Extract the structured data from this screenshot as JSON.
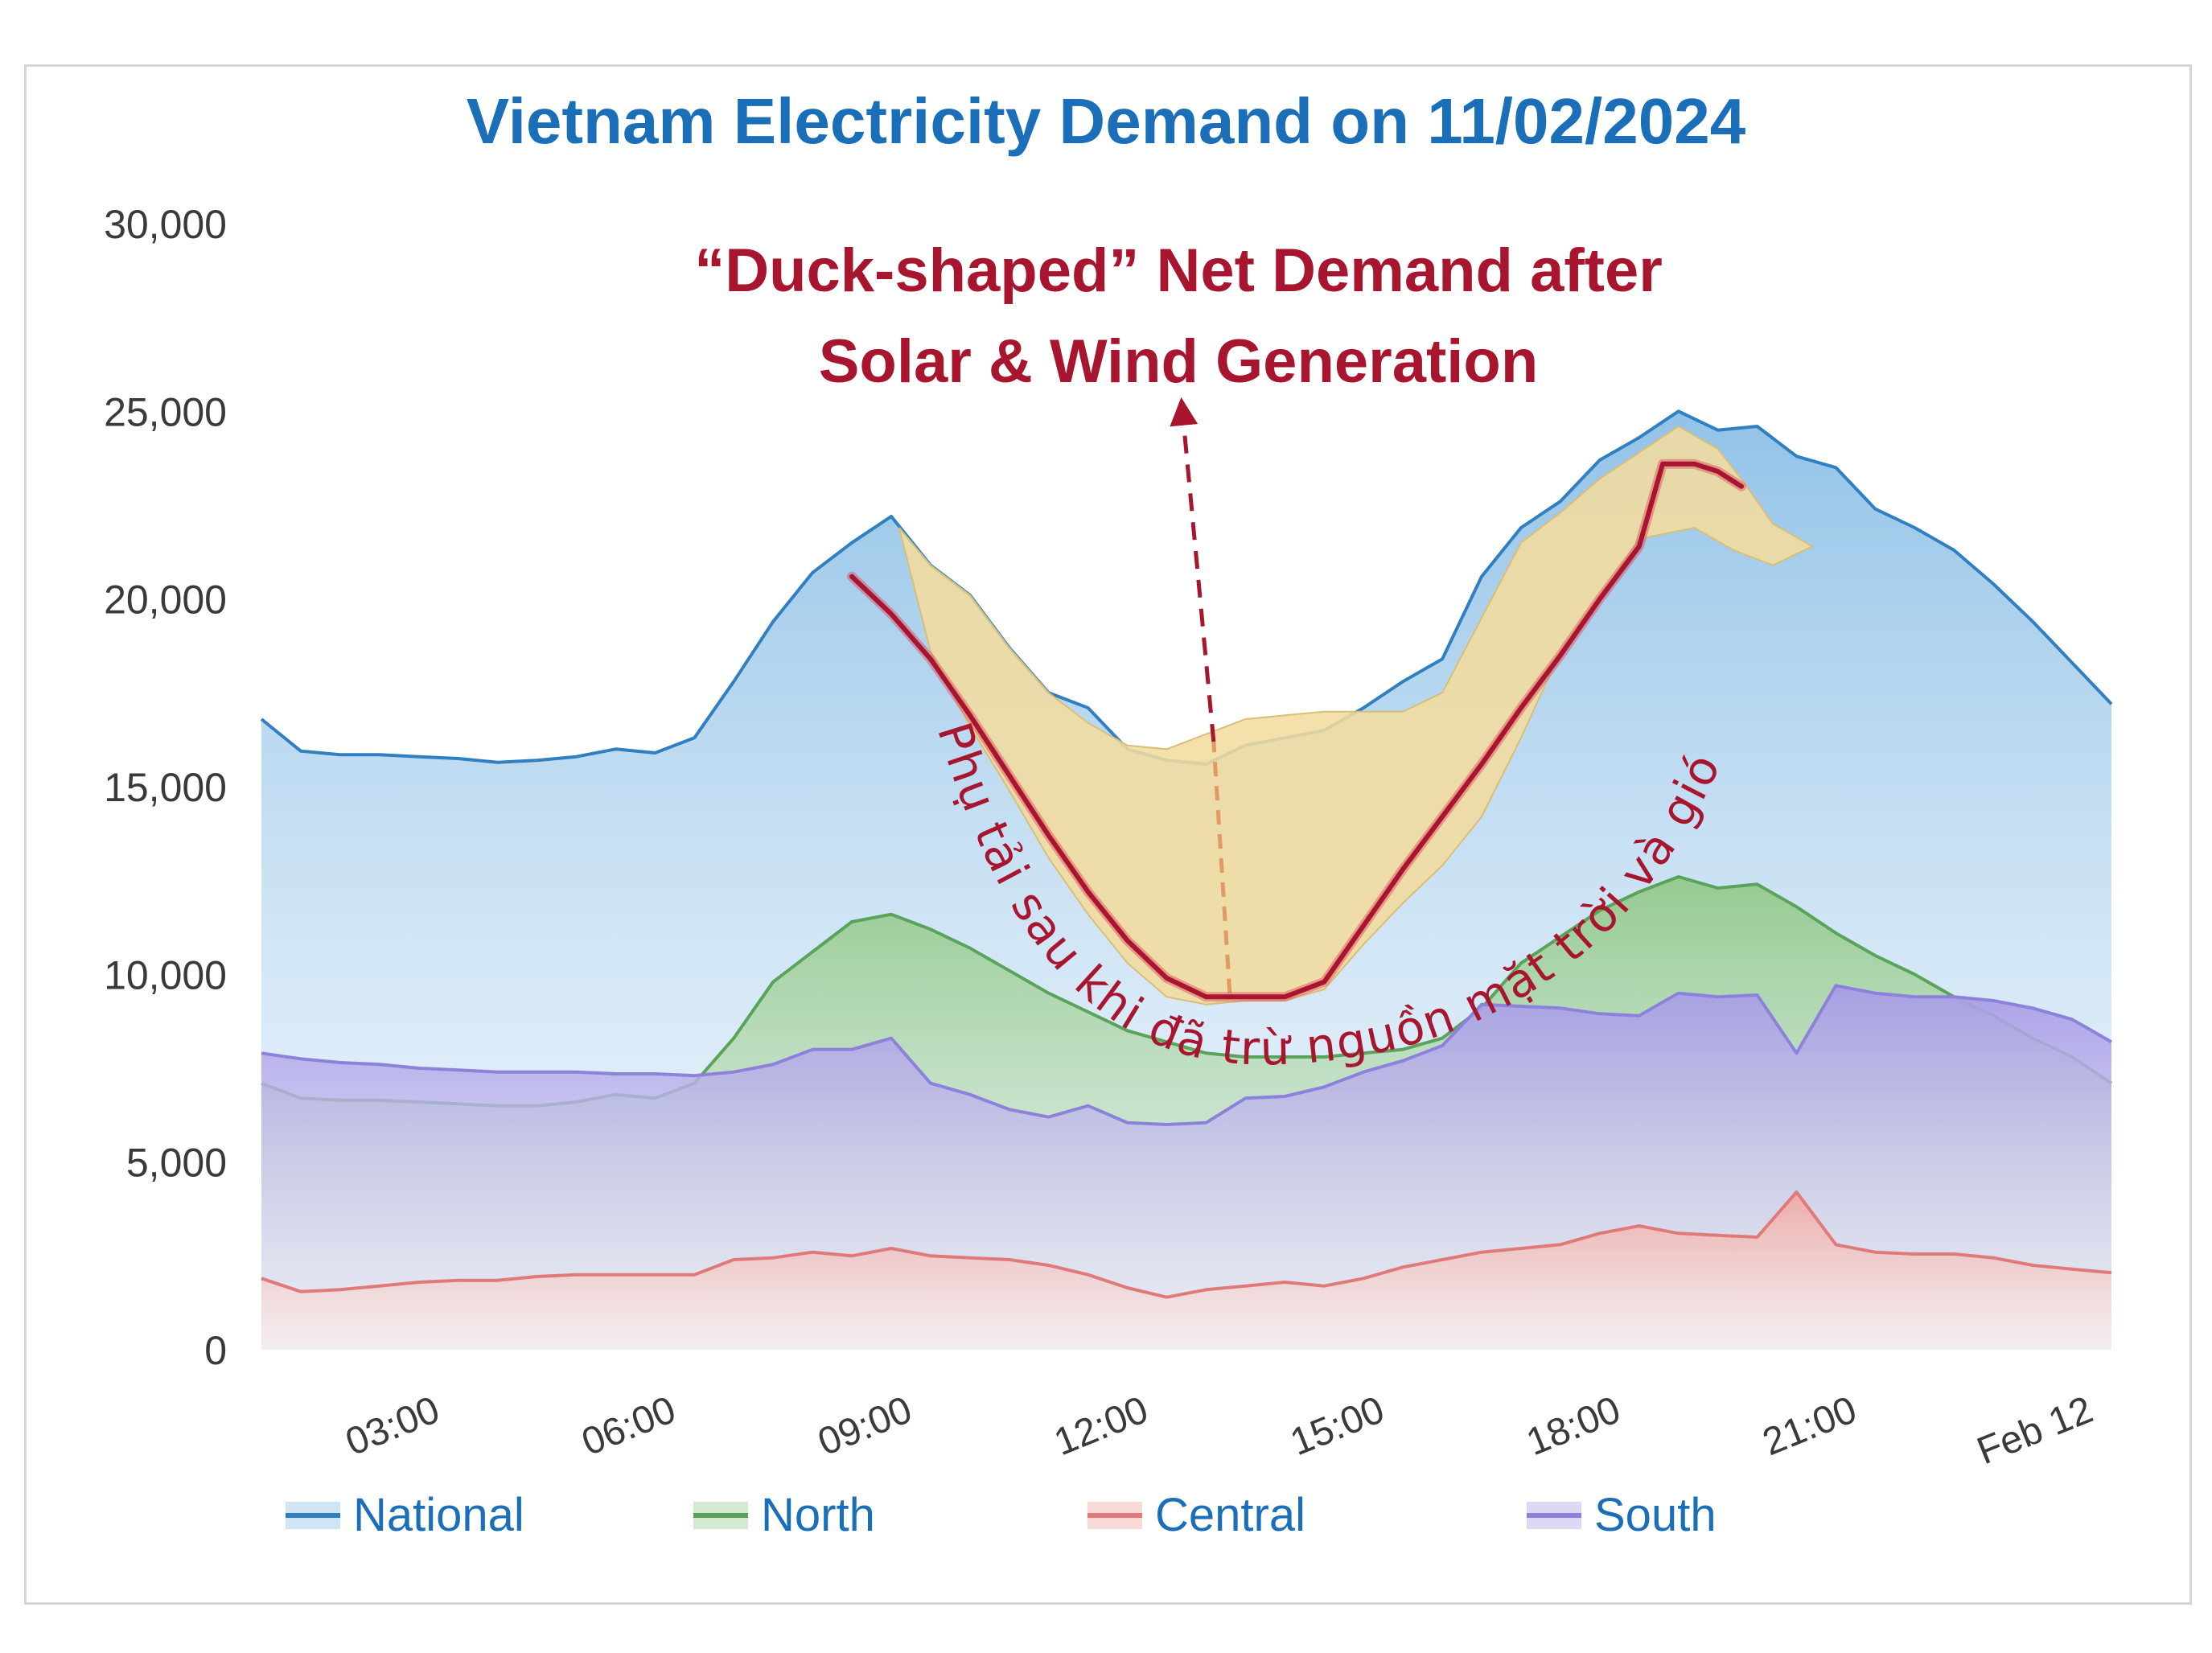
{
  "title": "Vietnam Electricity Demand on 11/02/2024",
  "annotation": {
    "heading_line1": "“Duck-shaped” Net Demand after",
    "heading_line2": "Solar & Wind Generation",
    "curve_text": "Phụ tải sau khi đã trừ nguồn mặt trời và gió",
    "color": "#a8152e",
    "belly_color": "#f2dc9e"
  },
  "chart_data": {
    "type": "area",
    "title": "Vietnam Electricity Demand on 11/02/2024",
    "xlabel": "",
    "ylabel": "",
    "x_unit": "hours since 00:00 on 11/02/2024",
    "x_ticks": [
      {
        "x": 3,
        "label": "03:00"
      },
      {
        "x": 6,
        "label": "06:00"
      },
      {
        "x": 9,
        "label": "09:00"
      },
      {
        "x": 12,
        "label": "12:00"
      },
      {
        "x": 15,
        "label": "15:00"
      },
      {
        "x": 18,
        "label": "18:00"
      },
      {
        "x": 21,
        "label": "21:00"
      },
      {
        "x": 24,
        "label": "Feb 12"
      }
    ],
    "y_ticks": [
      0,
      5000,
      10000,
      15000,
      20000,
      25000,
      30000
    ],
    "y_tick_labels": [
      "0",
      "5,000",
      "10,000",
      "15,000",
      "20,000",
      "25,000",
      "30,000"
    ],
    "xlim": [
      0.5,
      24
    ],
    "ylim": [
      0,
      30000
    ],
    "grid": false,
    "legend_position": "bottom",
    "series": [
      {
        "name": "National",
        "color": "#2f7fc1",
        "fill": "#9fc9ea",
        "points": [
          [
            0.5,
            16800
          ],
          [
            1.0,
            15950
          ],
          [
            1.5,
            15850
          ],
          [
            2.0,
            15850
          ],
          [
            2.5,
            15800
          ],
          [
            3.0,
            15750
          ],
          [
            3.5,
            15650
          ],
          [
            4.0,
            15700
          ],
          [
            4.5,
            15800
          ],
          [
            5.0,
            16000
          ],
          [
            5.5,
            15900
          ],
          [
            6.0,
            16300
          ],
          [
            6.5,
            17800
          ],
          [
            7.0,
            19400
          ],
          [
            7.5,
            20700
          ],
          [
            8.0,
            21500
          ],
          [
            8.5,
            22200
          ],
          [
            9.0,
            20900
          ],
          [
            9.5,
            20100
          ],
          [
            10.0,
            18700
          ],
          [
            10.5,
            17500
          ],
          [
            11.0,
            17100
          ],
          [
            11.5,
            16000
          ],
          [
            12.0,
            15700
          ],
          [
            12.5,
            15600
          ],
          [
            13.0,
            16100
          ],
          [
            13.5,
            16300
          ],
          [
            14.0,
            16500
          ],
          [
            14.5,
            17100
          ],
          [
            15.0,
            17800
          ],
          [
            15.5,
            18400
          ],
          [
            16.0,
            20600
          ],
          [
            16.5,
            21900
          ],
          [
            17.0,
            22600
          ],
          [
            17.5,
            23700
          ],
          [
            18.0,
            24300
          ],
          [
            18.5,
            25000
          ],
          [
            19.0,
            24500
          ],
          [
            19.5,
            24600
          ],
          [
            20.0,
            23800
          ],
          [
            20.5,
            23500
          ],
          [
            21.0,
            22400
          ],
          [
            21.5,
            21900
          ],
          [
            22.0,
            21300
          ],
          [
            22.5,
            20400
          ],
          [
            23.0,
            19400
          ],
          [
            23.5,
            18300
          ],
          [
            24.0,
            17200
          ]
        ]
      },
      {
        "name": "North",
        "color": "#5aa35a",
        "fill": "#a9d3a3",
        "points": [
          [
            0.5,
            7100
          ],
          [
            1.0,
            6700
          ],
          [
            1.5,
            6650
          ],
          [
            2.0,
            6650
          ],
          [
            2.5,
            6600
          ],
          [
            3.0,
            6550
          ],
          [
            3.5,
            6500
          ],
          [
            4.0,
            6500
          ],
          [
            4.5,
            6600
          ],
          [
            5.0,
            6800
          ],
          [
            5.5,
            6700
          ],
          [
            6.0,
            7100
          ],
          [
            6.5,
            8300
          ],
          [
            7.0,
            9800
          ],
          [
            7.5,
            10600
          ],
          [
            8.0,
            11400
          ],
          [
            8.5,
            11600
          ],
          [
            9.0,
            11200
          ],
          [
            9.5,
            10700
          ],
          [
            10.0,
            10100
          ],
          [
            10.5,
            9500
          ],
          [
            11.0,
            9000
          ],
          [
            11.5,
            8500
          ],
          [
            12.0,
            8200
          ],
          [
            12.5,
            7900
          ],
          [
            13.0,
            7800
          ],
          [
            13.5,
            7800
          ],
          [
            14.0,
            7800
          ],
          [
            14.5,
            7900
          ],
          [
            15.0,
            8000
          ],
          [
            15.5,
            8300
          ],
          [
            16.0,
            9100
          ],
          [
            16.5,
            10300
          ],
          [
            17.0,
            11000
          ],
          [
            17.5,
            11700
          ],
          [
            18.0,
            12200
          ],
          [
            18.5,
            12600
          ],
          [
            19.0,
            12300
          ],
          [
            19.5,
            12400
          ],
          [
            20.0,
            11800
          ],
          [
            20.5,
            11100
          ],
          [
            21.0,
            10500
          ],
          [
            21.5,
            10000
          ],
          [
            22.0,
            9400
          ],
          [
            22.5,
            8900
          ],
          [
            23.0,
            8300
          ],
          [
            23.5,
            7800
          ],
          [
            24.0,
            7100
          ]
        ]
      },
      {
        "name": "Central",
        "color": "#e07a7a",
        "fill": "#f2b4ad",
        "points": [
          [
            0.5,
            1900
          ],
          [
            1.0,
            1550
          ],
          [
            1.5,
            1600
          ],
          [
            2.0,
            1700
          ],
          [
            2.5,
            1800
          ],
          [
            3.0,
            1850
          ],
          [
            3.5,
            1850
          ],
          [
            4.0,
            1950
          ],
          [
            4.5,
            2000
          ],
          [
            5.0,
            2000
          ],
          [
            5.5,
            2000
          ],
          [
            6.0,
            2000
          ],
          [
            6.5,
            2400
          ],
          [
            7.0,
            2450
          ],
          [
            7.5,
            2600
          ],
          [
            8.0,
            2500
          ],
          [
            8.5,
            2700
          ],
          [
            9.0,
            2500
          ],
          [
            9.5,
            2450
          ],
          [
            10.0,
            2400
          ],
          [
            10.5,
            2250
          ],
          [
            11.0,
            2000
          ],
          [
            11.5,
            1650
          ],
          [
            12.0,
            1400
          ],
          [
            12.5,
            1600
          ],
          [
            13.0,
            1700
          ],
          [
            13.5,
            1800
          ],
          [
            14.0,
            1700
          ],
          [
            14.5,
            1900
          ],
          [
            15.0,
            2200
          ],
          [
            15.5,
            2400
          ],
          [
            16.0,
            2600
          ],
          [
            16.5,
            2700
          ],
          [
            17.0,
            2800
          ],
          [
            17.5,
            3100
          ],
          [
            18.0,
            3300
          ],
          [
            18.5,
            3100
          ],
          [
            19.0,
            3050
          ],
          [
            19.5,
            3000
          ],
          [
            20.0,
            4200
          ],
          [
            20.5,
            2800
          ],
          [
            21.0,
            2600
          ],
          [
            21.5,
            2550
          ],
          [
            22.0,
            2550
          ],
          [
            22.5,
            2450
          ],
          [
            23.0,
            2250
          ],
          [
            23.5,
            2150
          ],
          [
            24.0,
            2050
          ]
        ]
      },
      {
        "name": "South",
        "color": "#8d82db",
        "fill": "#bdb2ea",
        "points": [
          [
            0.5,
            7900
          ],
          [
            1.0,
            7750
          ],
          [
            1.5,
            7650
          ],
          [
            2.0,
            7600
          ],
          [
            2.5,
            7500
          ],
          [
            3.0,
            7450
          ],
          [
            3.5,
            7400
          ],
          [
            4.0,
            7400
          ],
          [
            4.5,
            7400
          ],
          [
            5.0,
            7350
          ],
          [
            5.5,
            7350
          ],
          [
            6.0,
            7300
          ],
          [
            6.5,
            7400
          ],
          [
            7.0,
            7600
          ],
          [
            7.5,
            8000
          ],
          [
            8.0,
            8000
          ],
          [
            8.5,
            8300
          ],
          [
            9.0,
            7100
          ],
          [
            9.5,
            6800
          ],
          [
            10.0,
            6400
          ],
          [
            10.5,
            6200
          ],
          [
            11.0,
            6500
          ],
          [
            11.5,
            6050
          ],
          [
            12.0,
            6000
          ],
          [
            12.5,
            6050
          ],
          [
            13.0,
            6700
          ],
          [
            13.5,
            6750
          ],
          [
            14.0,
            7000
          ],
          [
            14.5,
            7400
          ],
          [
            15.0,
            7700
          ],
          [
            15.5,
            8100
          ],
          [
            16.0,
            9200
          ],
          [
            16.5,
            9150
          ],
          [
            17.0,
            9100
          ],
          [
            17.5,
            8950
          ],
          [
            18.0,
            8900
          ],
          [
            18.5,
            9500
          ],
          [
            19.0,
            9400
          ],
          [
            19.5,
            9450
          ],
          [
            20.0,
            7900
          ],
          [
            20.5,
            9700
          ],
          [
            21.0,
            9500
          ],
          [
            21.5,
            9400
          ],
          [
            22.0,
            9400
          ],
          [
            22.5,
            9300
          ],
          [
            23.0,
            9100
          ],
          [
            23.5,
            8800
          ],
          [
            24.0,
            8200
          ]
        ]
      }
    ],
    "net_demand": {
      "points": [
        [
          8.0,
          20600
        ],
        [
          8.5,
          19600
        ],
        [
          9.0,
          18400
        ],
        [
          9.5,
          16900
        ],
        [
          10.0,
          15300
        ],
        [
          10.5,
          13700
        ],
        [
          11.0,
          12200
        ],
        [
          11.5,
          10900
        ],
        [
          12.0,
          9900
        ],
        [
          12.5,
          9400
        ],
        [
          13.0,
          9400
        ],
        [
          13.5,
          9400
        ],
        [
          14.0,
          9800
        ],
        [
          14.5,
          11300
        ],
        [
          15.0,
          12800
        ],
        [
          15.5,
          14200
        ],
        [
          16.0,
          15600
        ],
        [
          16.5,
          17100
        ],
        [
          17.0,
          18500
        ],
        [
          17.5,
          20000
        ],
        [
          18.0,
          21400
        ],
        [
          18.3,
          23600
        ],
        [
          18.7,
          23600
        ],
        [
          19.0,
          23400
        ],
        [
          19.3,
          23000
        ]
      ],
      "duck_belly_upper": [
        [
          8.6,
          21900
        ],
        [
          9.0,
          20900
        ],
        [
          9.5,
          20100
        ],
        [
          10.0,
          18700
        ],
        [
          10.5,
          17500
        ],
        [
          11.0,
          16700
        ],
        [
          11.5,
          16100
        ],
        [
          12.0,
          16000
        ],
        [
          12.5,
          16400
        ],
        [
          13.0,
          16800
        ],
        [
          13.5,
          16900
        ],
        [
          14.0,
          17000
        ],
        [
          14.5,
          17000
        ],
        [
          15.0,
          17000
        ],
        [
          15.5,
          17500
        ],
        [
          16.0,
          19500
        ],
        [
          16.5,
          21500
        ],
        [
          17.0,
          22300
        ],
        [
          17.5,
          23200
        ],
        [
          18.0,
          23900
        ],
        [
          18.5,
          24600
        ],
        [
          19.0,
          24000
        ],
        [
          19.3,
          23200
        ],
        [
          19.7,
          22000
        ],
        [
          20.2,
          21400
        ]
      ],
      "duck_belly_lower": [
        [
          20.2,
          21400
        ],
        [
          19.7,
          20900
        ],
        [
          19.2,
          21300
        ],
        [
          18.7,
          21900
        ],
        [
          18.0,
          21600
        ],
        [
          17.5,
          20000
        ],
        [
          17.0,
          18600
        ],
        [
          16.5,
          16300
        ],
        [
          16.0,
          14200
        ],
        [
          15.5,
          12900
        ],
        [
          15.0,
          11900
        ],
        [
          14.5,
          10800
        ],
        [
          14.0,
          9600
        ],
        [
          13.5,
          9300
        ],
        [
          13.0,
          9300
        ],
        [
          12.5,
          9200
        ],
        [
          12.0,
          9400
        ],
        [
          11.5,
          10300
        ],
        [
          11.0,
          11600
        ],
        [
          10.5,
          13100
        ],
        [
          10.0,
          14900
        ],
        [
          9.5,
          16600
        ],
        [
          9.0,
          18600
        ],
        [
          8.6,
          21900
        ]
      ],
      "arrow_from": [
        12.8,
        9500
      ],
      "arrow_to": [
        12.2,
        25000
      ]
    }
  },
  "legend": {
    "items": [
      {
        "label": "National"
      },
      {
        "label": "North"
      },
      {
        "label": "Central"
      },
      {
        "label": "South"
      }
    ]
  }
}
